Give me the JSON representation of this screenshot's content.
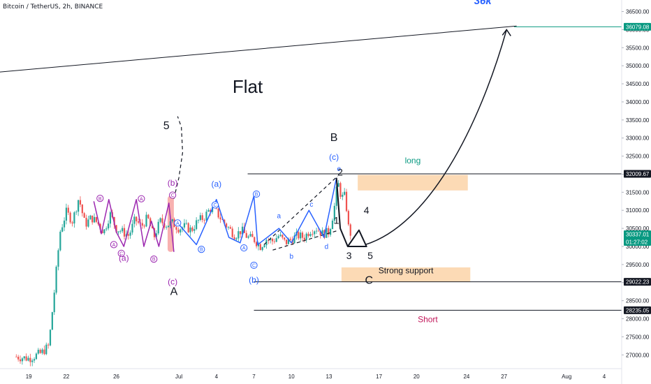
{
  "header": {
    "symbol_title": "Bitcoin / TetherUS, 2h, BINANCE"
  },
  "chart_data": {
    "type": "candlestick",
    "title": "Bitcoin / TetherUS, 2h, BINANCE",
    "ylim": [
      26600,
      36800
    ],
    "yticks": [
      27000,
      27500,
      28000,
      28500,
      29000,
      29500,
      30000,
      30500,
      31000,
      31500,
      32000,
      32500,
      33000,
      33500,
      34000,
      34500,
      35000,
      35500,
      36000,
      36500
    ],
    "ytick_labels": [
      "27000.00",
      "27500.00",
      "28000.00",
      "28500.00",
      "29000.00",
      "29500.00",
      "30000.00",
      "30500.00",
      "31000.00",
      "31500.00",
      "32000.00",
      "32500.00",
      "33000.00",
      "33500.00",
      "34000.00",
      "34500.00",
      "35000.00",
      "35500.00",
      "36000.00",
      "36500.00"
    ],
    "xticks": [
      {
        "label": "19",
        "t": 1.0
      },
      {
        "label": "22",
        "t": 4.0
      },
      {
        "label": "26",
        "t": 8.0
      },
      {
        "label": "Jul",
        "t": 13.0
      },
      {
        "label": "4",
        "t": 16.0
      },
      {
        "label": "7",
        "t": 19.0
      },
      {
        "label": "10",
        "t": 22.0
      },
      {
        "label": "13",
        "t": 25.0
      },
      {
        "label": "17",
        "t": 29.0
      },
      {
        "label": "20",
        "t": 32.0
      },
      {
        "label": "24",
        "t": 36.0
      },
      {
        "label": "27",
        "t": 39.0
      },
      {
        "label": "Aug",
        "t": 44.0
      },
      {
        "label": "4",
        "t": 47.0
      }
    ],
    "price_labels": [
      {
        "price": 36079.08,
        "text": "36079.08",
        "style": "green"
      },
      {
        "price": 32009.67,
        "text": "32009.67",
        "style": "dark"
      },
      {
        "price": 30337.01,
        "text": "30337.01",
        "sub": "01:27:02",
        "style": "teal"
      },
      {
        "price": 29022.23,
        "text": "29022.23",
        "style": "dark"
      },
      {
        "price": 28235.05,
        "text": "28235.05",
        "style": "dark"
      }
    ],
    "horizontal_levels": [
      {
        "price": 32009.67,
        "t_start": 18.5
      },
      {
        "price": 29022.23,
        "t_start": 19.0
      },
      {
        "price": 28235.05,
        "t_start": 19.0
      },
      {
        "price": 36079.08,
        "t_start": 39.8,
        "color": "#089981"
      }
    ],
    "trendline": {
      "t1": -2.5,
      "p1": 34790,
      "t2": 40.0,
      "p2": 36100
    },
    "zones": [
      {
        "label": "long",
        "t1": 27.3,
        "t2": 36.1,
        "p1": 31550,
        "p2": 31980,
        "label_price": 32300,
        "label_color": "#089981"
      },
      {
        "label": "Strong support",
        "t1": 26.0,
        "t2": 36.3,
        "p1": 29020,
        "p2": 29420,
        "label_price": 29260,
        "label_color": "#131722"
      }
    ],
    "overlay_texts": [
      {
        "text": "Flat",
        "t": 18.5,
        "price": 34250,
        "size": 26,
        "color": "#131722"
      },
      {
        "text": "36k",
        "t": 37.3,
        "price": 36700,
        "size": 15,
        "color": "#2962ff",
        "italic": true,
        "bold": true
      },
      {
        "text": "Short",
        "t": 32.9,
        "price": 27900,
        "size": 12,
        "color": "#c2185b"
      },
      {
        "text": "5",
        "t": 12.0,
        "price": 33250,
        "size": 16,
        "color": "#131722"
      },
      {
        "text": "A",
        "t": 12.6,
        "price": 28660,
        "size": 16,
        "color": "#131722"
      },
      {
        "text": "B",
        "t": 25.4,
        "price": 32920,
        "size": 16,
        "color": "#131722"
      },
      {
        "text": "C",
        "t": 28.2,
        "price": 28970,
        "size": 16,
        "color": "#131722"
      },
      {
        "text": "(c)",
        "t": 25.4,
        "price": 32400,
        "size": 12,
        "color": "#2962ff"
      },
      {
        "text": "(a)",
        "t": 16.0,
        "price": 31650,
        "size": 12,
        "color": "#2962ff"
      },
      {
        "text": "(b)",
        "t": 19.0,
        "price": 29000,
        "size": 12,
        "color": "#2962ff"
      },
      {
        "text": "(b)",
        "t": 12.5,
        "price": 31680,
        "size": 12,
        "color": "#9c27b0"
      },
      {
        "text": "(a)",
        "t": 8.6,
        "price": 29600,
        "size": 12,
        "color": "#9c27b0"
      },
      {
        "text": "(c)",
        "t": 12.5,
        "price": 28950,
        "size": 12,
        "color": "#9c27b0"
      },
      {
        "text": "2",
        "t": 25.9,
        "price": 31960,
        "size": 14,
        "color": "#131722"
      },
      {
        "text": "1",
        "t": 25.6,
        "price": 30630,
        "size": 14,
        "color": "#131722"
      },
      {
        "text": "3",
        "t": 26.6,
        "price": 29650,
        "size": 14,
        "color": "#131722"
      },
      {
        "text": "4",
        "t": 28.0,
        "price": 30910,
        "size": 14,
        "color": "#131722"
      },
      {
        "text": "5",
        "t": 28.3,
        "price": 29650,
        "size": 14,
        "color": "#131722"
      },
      {
        "text": "a",
        "t": 21.0,
        "price": 30780,
        "size": 10,
        "color": "#2962ff"
      },
      {
        "text": "b",
        "t": 22.0,
        "price": 29660,
        "size": 10,
        "color": "#2962ff"
      },
      {
        "text": "c",
        "t": 23.6,
        "price": 31100,
        "size": 10,
        "color": "#2962ff"
      },
      {
        "text": "d",
        "t": 24.8,
        "price": 29930,
        "size": 10,
        "color": "#2962ff"
      },
      {
        "text": "e",
        "t": 25.8,
        "price": 32090,
        "size": 10,
        "color": "#2962ff"
      }
    ],
    "circle_labels": [
      {
        "text": "B",
        "t": 6.7,
        "price": 31330,
        "color": "#9c27b0"
      },
      {
        "text": "A",
        "t": 7.8,
        "price": 30050,
        "color": "#9c27b0"
      },
      {
        "text": "C",
        "t": 8.4,
        "price": 29810,
        "color": "#9c27b0"
      },
      {
        "text": "A",
        "t": 10.0,
        "price": 31320,
        "color": "#9c27b0"
      },
      {
        "text": "B",
        "t": 11.0,
        "price": 29650,
        "color": "#9c27b0"
      },
      {
        "text": "C",
        "t": 12.5,
        "price": 31420,
        "color": "#9c27b0"
      },
      {
        "text": "A",
        "t": 12.9,
        "price": 30650,
        "color": "#2962ff"
      },
      {
        "text": "B",
        "t": 14.8,
        "price": 29920,
        "color": "#2962ff"
      },
      {
        "text": "C",
        "t": 15.9,
        "price": 31150,
        "color": "#2962ff"
      },
      {
        "text": "A",
        "t": 18.2,
        "price": 29960,
        "color": "#2962ff"
      },
      {
        "text": "B",
        "t": 19.2,
        "price": 31450,
        "color": "#2962ff"
      },
      {
        "text": "C",
        "t": 19.0,
        "price": 29480,
        "color": "#2962ff"
      }
    ],
    "wave_purple": [
      [
        6.2,
        31250
      ],
      [
        6.8,
        30350
      ],
      [
        7.4,
        31300
      ],
      [
        8.0,
        30400
      ],
      [
        8.6,
        30000
      ],
      [
        9.6,
        31300
      ],
      [
        10.2,
        30000
      ],
      [
        10.8,
        30700
      ],
      [
        11.4,
        30000
      ],
      [
        12.2,
        31200
      ],
      [
        12.6,
        29850
      ]
    ],
    "wave_blue": [
      [
        12.9,
        30650
      ],
      [
        14.4,
        30050
      ],
      [
        16.0,
        31300
      ],
      [
        17.0,
        30250
      ],
      [
        17.9,
        30100
      ],
      [
        19.0,
        31400
      ],
      [
        19.3,
        30050
      ],
      [
        21.0,
        30500
      ],
      [
        22.0,
        30100
      ],
      [
        23.4,
        31000
      ],
      [
        24.6,
        30250
      ],
      [
        25.6,
        31900
      ]
    ],
    "wave_black": [
      [
        25.6,
        31900
      ],
      [
        25.9,
        30500
      ],
      [
        26.5,
        30000
      ],
      [
        27.4,
        30450
      ],
      [
        28.0,
        30000
      ],
      [
        26.5,
        30000
      ]
    ],
    "dashed_lines": [
      {
        "points": [
          [
            19.8,
            30050
          ],
          [
            25.7,
            31950
          ]
        ]
      },
      {
        "points": [
          [
            20.5,
            29900
          ],
          [
            25.8,
            30450
          ]
        ]
      },
      {
        "points": [
          [
            12.6,
            31320
          ],
          [
            13.0,
            31900
          ],
          [
            13.3,
            32600
          ],
          [
            13.2,
            33300
          ],
          [
            12.9,
            33600
          ]
        ]
      }
    ],
    "red_band": {
      "t1": 12.1,
      "t2": 12.6,
      "p1": 29850,
      "p2": 31400
    },
    "forecast_arrow": [
      [
        27.9,
        30050
      ],
      [
        33.0,
        30600
      ],
      [
        37.0,
        33300
      ],
      [
        39.2,
        36000
      ]
    ],
    "candles": {
      "seed": 7,
      "anchors": [
        [
          0.0,
          26950
        ],
        [
          1.0,
          26900
        ],
        [
          2.0,
          27050
        ],
        [
          2.6,
          27250
        ],
        [
          3.0,
          28600
        ],
        [
          3.5,
          30400
        ],
        [
          4.0,
          30950
        ],
        [
          4.5,
          30700
        ],
        [
          5.0,
          31350
        ],
        [
          5.5,
          30600
        ],
        [
          6.0,
          30800
        ],
        [
          6.5,
          30650
        ],
        [
          7.0,
          30400
        ],
        [
          7.5,
          30900
        ],
        [
          8.0,
          30500
        ],
        [
          8.5,
          30400
        ],
        [
          9.0,
          30300
        ],
        [
          9.5,
          30750
        ],
        [
          10.0,
          30550
        ],
        [
          10.5,
          30800
        ],
        [
          11.0,
          30250
        ],
        [
          11.5,
          30700
        ],
        [
          12.0,
          30600
        ],
        [
          12.5,
          30650
        ],
        [
          13.0,
          30500
        ],
        [
          13.5,
          30550
        ],
        [
          14.0,
          30450
        ],
        [
          14.5,
          30700
        ],
        [
          15.0,
          30800
        ],
        [
          15.5,
          31050
        ],
        [
          16.0,
          30950
        ],
        [
          16.5,
          30700
        ],
        [
          17.0,
          30500
        ],
        [
          17.5,
          30300
        ],
        [
          18.0,
          30450
        ],
        [
          18.5,
          30250
        ],
        [
          19.0,
          30200
        ],
        [
          19.5,
          30000
        ],
        [
          20.0,
          30200
        ],
        [
          20.5,
          30150
        ],
        [
          21.0,
          30300
        ],
        [
          21.5,
          30100
        ],
        [
          22.0,
          30200
        ],
        [
          22.5,
          30300
        ],
        [
          23.0,
          30250
        ],
        [
          23.5,
          30450
        ],
        [
          24.0,
          30500
        ],
        [
          24.5,
          30350
        ],
        [
          25.0,
          30400
        ],
        [
          25.4,
          31000
        ],
        [
          25.7,
          31800
        ],
        [
          26.0,
          31350
        ],
        [
          26.3,
          31400
        ],
        [
          26.6,
          30400
        ],
        [
          26.8,
          30337
        ]
      ]
    }
  }
}
